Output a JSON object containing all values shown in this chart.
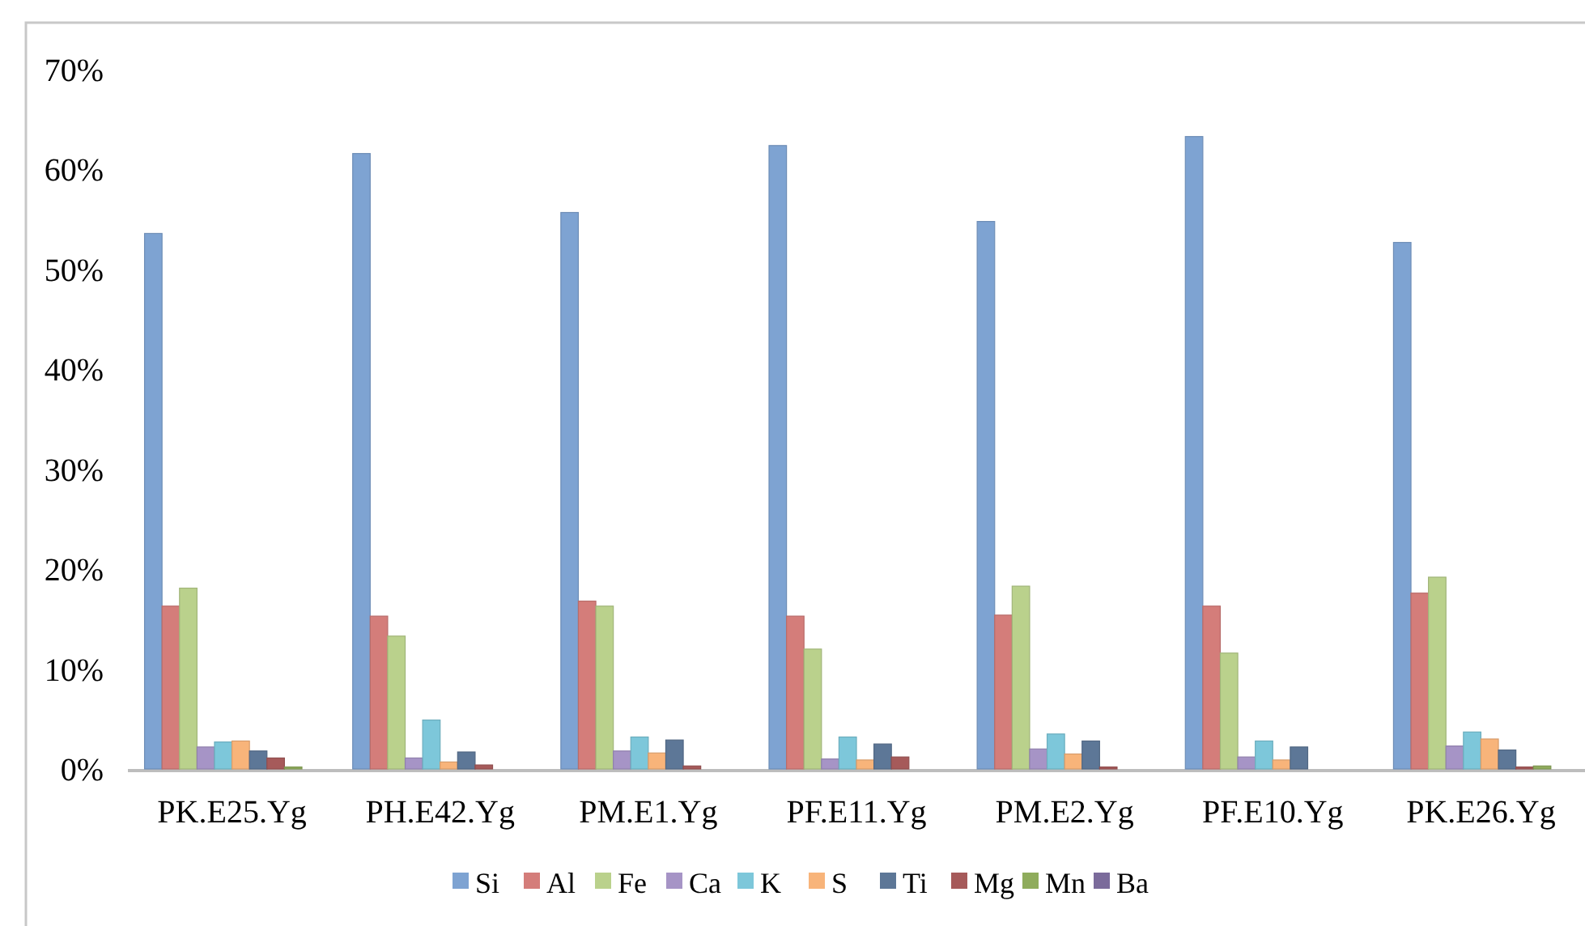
{
  "chart_data": {
    "type": "bar",
    "categories": [
      "PK.E25.Yg",
      "PH.E42.Yg",
      "PM.E1.Yg",
      "PF.E11.Yg",
      "PM.E2.Yg",
      "PF.E10.Yg",
      "PK.E26.Yg"
    ],
    "series": [
      {
        "name": "Si",
        "color": "#7ea3d2",
        "values": [
          53.6,
          61.6,
          55.7,
          62.4,
          54.8,
          63.3,
          52.7
        ]
      },
      {
        "name": "Al",
        "color": "#d47d7a",
        "values": [
          16.3,
          15.3,
          16.8,
          15.3,
          15.4,
          16.3,
          17.6
        ]
      },
      {
        "name": "Fe",
        "color": "#bad18c",
        "values": [
          18.1,
          13.3,
          16.3,
          12.0,
          18.3,
          11.6,
          19.2
        ]
      },
      {
        "name": "Ca",
        "color": "#a694c6",
        "values": [
          2.2,
          1.1,
          1.8,
          1.0,
          2.0,
          1.2,
          2.3
        ]
      },
      {
        "name": "K",
        "color": "#7dc7da",
        "values": [
          2.7,
          4.9,
          3.2,
          3.2,
          3.5,
          2.8,
          3.7
        ]
      },
      {
        "name": "S",
        "color": "#f8b47a",
        "values": [
          2.8,
          0.7,
          1.6,
          0.9,
          1.5,
          0.9,
          3.0
        ]
      },
      {
        "name": "Ti",
        "color": "#5d7797",
        "values": [
          1.8,
          1.7,
          2.9,
          2.5,
          2.8,
          2.2,
          1.9
        ]
      },
      {
        "name": "Mg",
        "color": "#a65a5a",
        "values": [
          1.1,
          0.4,
          0.3,
          1.2,
          0.2,
          0,
          0.2
        ]
      },
      {
        "name": "Mn",
        "color": "#8fac5c",
        "values": [
          0.2,
          0,
          0,
          0,
          0,
          0,
          0.3
        ]
      },
      {
        "name": "Ba",
        "color": "#7b6b9b",
        "values": [
          0,
          0,
          0,
          0,
          0,
          0,
          0
        ]
      }
    ],
    "ylim": [
      0,
      70
    ],
    "yticks": [
      {
        "value": 0,
        "label": "0%"
      },
      {
        "value": 10,
        "label": "10%"
      },
      {
        "value": 20,
        "label": "20%"
      },
      {
        "value": 30,
        "label": "30%"
      },
      {
        "value": 40,
        "label": "40%"
      },
      {
        "value": 50,
        "label": "50%"
      },
      {
        "value": 60,
        "label": "60%"
      },
      {
        "value": 70,
        "label": "70%"
      }
    ],
    "grid": false,
    "legend": "bottom"
  }
}
